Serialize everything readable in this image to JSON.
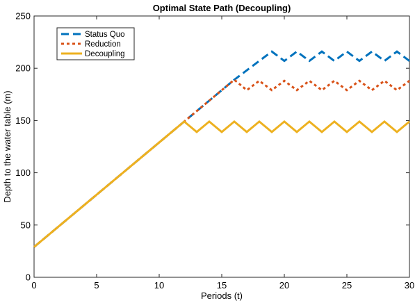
{
  "chart_data": {
    "type": "line",
    "title": "Optimal State Path (Decoupling)",
    "xlabel": "Periods (t)",
    "ylabel": "Depth to the water table (m)",
    "xlim": [
      0,
      30
    ],
    "ylim": [
      0,
      250
    ],
    "xticks": [
      0,
      5,
      10,
      15,
      20,
      25,
      30
    ],
    "yticks": [
      0,
      50,
      100,
      150,
      200,
      250
    ],
    "grid": false,
    "legend_position": "top-left",
    "series": [
      {
        "name": "Status Quo",
        "color": "#0072BD",
        "style": "dashed",
        "x": [
          0,
          16,
          17,
          18,
          19,
          20,
          21,
          22,
          23,
          24,
          25,
          26,
          27,
          28,
          29,
          30
        ],
        "y": [
          29,
          189,
          198,
          207,
          216,
          207,
          216,
          207,
          216,
          207,
          216,
          207,
          216,
          207,
          216,
          207
        ]
      },
      {
        "name": "Reduction",
        "color": "#D95319",
        "style": "dotted",
        "x": [
          0,
          16,
          17,
          18,
          19,
          20,
          21,
          22,
          23,
          24,
          25,
          26,
          27,
          28,
          29,
          30
        ],
        "y": [
          29,
          189,
          179,
          188,
          179,
          188,
          179,
          188,
          179,
          188,
          179,
          188,
          179,
          188,
          179,
          188
        ]
      },
      {
        "name": "Decoupling",
        "color": "#EDB120",
        "style": "solid",
        "x": [
          0,
          12,
          13,
          14,
          15,
          16,
          17,
          18,
          19,
          20,
          21,
          22,
          23,
          24,
          25,
          26,
          27,
          28,
          29,
          30
        ],
        "y": [
          29,
          149,
          139,
          149,
          139,
          149,
          139,
          149,
          139,
          149,
          139,
          149,
          139,
          149,
          139,
          149,
          139,
          149,
          139,
          149
        ]
      }
    ]
  }
}
